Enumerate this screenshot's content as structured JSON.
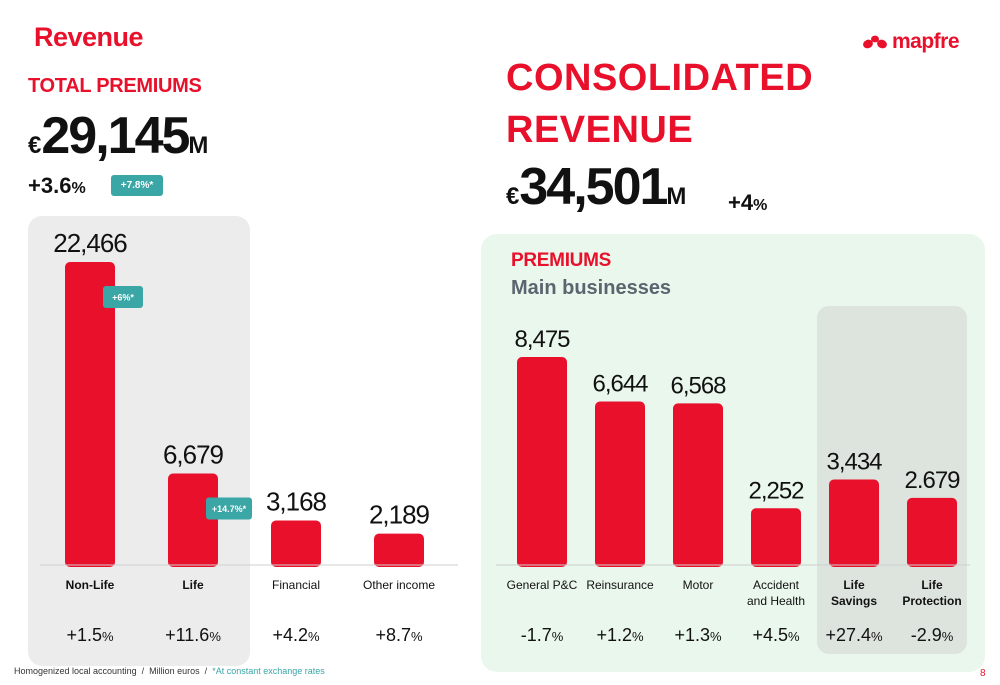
{
  "page_title": "Revenue",
  "logo": {
    "text": "mapfre"
  },
  "total_premiums": {
    "label": "TOTAL PREMIUMS",
    "currency": "€",
    "amount": "29,145",
    "unit": "M",
    "growth": "+3.6",
    "growth_pct": "%",
    "badge": "+7.8%*"
  },
  "consolidated": {
    "title_line1": "CONSOLIDATED",
    "title_line2": "REVENUE",
    "currency": "€",
    "amount": "34,501",
    "unit": "M",
    "growth": "+4",
    "growth_pct": "%"
  },
  "premiums_section": {
    "label": "PREMIUMS",
    "subtitle": "Main businesses"
  },
  "footer": {
    "accounting": "Homogenized local accounting",
    "units": "Million euros",
    "note": "*At constant exchange rates",
    "sep": "/"
  },
  "page_number": "8",
  "colors": {
    "accent": "#e8102b",
    "teal": "#3aa6a6",
    "gray_panel": "#ececec",
    "green_panel": "#eaf7ec"
  },
  "chart_data": [
    {
      "type": "bar",
      "categories": [
        "Non-Life",
        "Life",
        "Financial",
        "Other income"
      ],
      "category_lines": [
        [
          "Non-Life"
        ],
        [
          "Life"
        ],
        [
          "Financial"
        ],
        [
          "Other income"
        ]
      ],
      "bold": [
        true,
        true,
        false,
        false
      ],
      "values": [
        22466,
        6679,
        3168,
        2189
      ],
      "value_labels": [
        "22,466",
        "6,679",
        "3,168",
        "2,189"
      ],
      "growth": [
        "+1.5",
        "+11.6",
        "+4.2",
        "+8.7"
      ],
      "badges": [
        "+6%*",
        "+14.7%*",
        "",
        ""
      ],
      "ylim": [
        0,
        22466
      ]
    },
    {
      "type": "bar",
      "categories": [
        "General P&C",
        "Reinsurance",
        "Motor",
        "Accident and Health",
        "Life Savings",
        "Life Protection"
      ],
      "category_lines": [
        [
          "General P&C"
        ],
        [
          "Reinsurance"
        ],
        [
          "Motor"
        ],
        [
          "Accident",
          "and Health"
        ],
        [
          "Life",
          "Savings"
        ],
        [
          "Life",
          "Protection"
        ]
      ],
      "bold": [
        false,
        false,
        false,
        false,
        true,
        true
      ],
      "values": [
        8475,
        6644,
        6568,
        2252,
        3434,
        2679
      ],
      "value_labels": [
        "8,475",
        "6,644",
        "6,568",
        "2,252",
        "3,434",
        "2.679"
      ],
      "growth": [
        "-1.7",
        "+1.2",
        "+1.3",
        "+4.5",
        "+27.4",
        "-2.9"
      ],
      "ylim": [
        0,
        8475
      ]
    }
  ]
}
